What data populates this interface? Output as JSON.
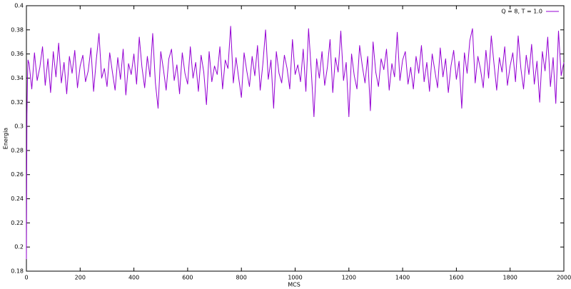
{
  "chart_data": {
    "type": "line",
    "xlabel": "MCS",
    "ylabel": "Energia",
    "x": [
      0,
      2,
      4,
      6,
      10,
      20,
      30,
      40,
      50,
      60,
      70,
      80,
      90,
      100,
      110,
      120,
      130,
      140,
      150,
      160,
      170,
      180,
      190,
      200,
      210,
      220,
      230,
      240,
      250,
      260,
      270,
      280,
      290,
      300,
      310,
      320,
      330,
      340,
      350,
      360,
      370,
      380,
      390,
      400,
      410,
      420,
      430,
      440,
      450,
      460,
      470,
      480,
      490,
      500,
      510,
      520,
      530,
      540,
      550,
      560,
      570,
      580,
      590,
      600,
      610,
      620,
      630,
      640,
      650,
      660,
      670,
      680,
      690,
      700,
      710,
      720,
      730,
      740,
      750,
      760,
      770,
      780,
      790,
      800,
      810,
      820,
      830,
      840,
      850,
      860,
      870,
      880,
      890,
      900,
      910,
      920,
      930,
      940,
      950,
      960,
      970,
      980,
      990,
      1000,
      1010,
      1020,
      1030,
      1040,
      1050,
      1060,
      1070,
      1080,
      1090,
      1100,
      1110,
      1120,
      1130,
      1140,
      1150,
      1160,
      1170,
      1180,
      1190,
      1200,
      1210,
      1220,
      1230,
      1240,
      1250,
      1260,
      1270,
      1280,
      1290,
      1300,
      1310,
      1320,
      1330,
      1340,
      1350,
      1360,
      1370,
      1380,
      1390,
      1400,
      1410,
      1420,
      1430,
      1440,
      1450,
      1460,
      1470,
      1480,
      1490,
      1500,
      1510,
      1520,
      1530,
      1540,
      1550,
      1560,
      1570,
      1580,
      1590,
      1600,
      1610,
      1620,
      1630,
      1640,
      1650,
      1660,
      1670,
      1680,
      1690,
      1700,
      1710,
      1720,
      1730,
      1740,
      1750,
      1760,
      1770,
      1780,
      1790,
      1800,
      1810,
      1820,
      1830,
      1840,
      1850,
      1860,
      1870,
      1880,
      1890,
      1900,
      1910,
      1920,
      1930,
      1940,
      1950,
      1960,
      1970,
      1980,
      1990,
      2000
    ],
    "series": [
      {
        "name": "Q = 8, T = 1.0",
        "color": "#9400d3",
        "values": [
          0.19,
          0.31,
          0.34,
          0.355,
          0.352,
          0.331,
          0.361,
          0.338,
          0.349,
          0.366,
          0.334,
          0.356,
          0.328,
          0.362,
          0.341,
          0.369,
          0.336,
          0.353,
          0.327,
          0.358,
          0.344,
          0.363,
          0.332,
          0.35,
          0.359,
          0.337,
          0.346,
          0.365,
          0.329,
          0.355,
          0.377,
          0.34,
          0.348,
          0.333,
          0.361,
          0.345,
          0.33,
          0.357,
          0.339,
          0.364,
          0.326,
          0.352,
          0.343,
          0.36,
          0.335,
          0.374,
          0.349,
          0.332,
          0.358,
          0.341,
          0.377,
          0.336,
          0.315,
          0.362,
          0.347,
          0.33,
          0.356,
          0.364,
          0.338,
          0.351,
          0.327,
          0.361,
          0.344,
          0.335,
          0.366,
          0.34,
          0.353,
          0.329,
          0.359,
          0.345,
          0.318,
          0.362,
          0.337,
          0.35,
          0.343,
          0.366,
          0.331,
          0.355,
          0.348,
          0.383,
          0.336,
          0.357,
          0.34,
          0.324,
          0.361,
          0.346,
          0.333,
          0.358,
          0.342,
          0.367,
          0.33,
          0.352,
          0.38,
          0.339,
          0.355,
          0.315,
          0.362,
          0.344,
          0.336,
          0.359,
          0.348,
          0.331,
          0.372,
          0.343,
          0.351,
          0.337,
          0.364,
          0.329,
          0.381,
          0.346,
          0.308,
          0.356,
          0.34,
          0.362,
          0.334,
          0.349,
          0.372,
          0.328,
          0.357,
          0.345,
          0.379,
          0.338,
          0.353,
          0.308,
          0.36,
          0.342,
          0.331,
          0.367,
          0.35,
          0.336,
          0.358,
          0.313,
          0.37,
          0.345,
          0.333,
          0.356,
          0.347,
          0.364,
          0.33,
          0.352,
          0.341,
          0.378,
          0.338,
          0.355,
          0.362,
          0.335,
          0.349,
          0.331,
          0.358,
          0.344,
          0.367,
          0.337,
          0.353,
          0.329,
          0.36,
          0.346,
          0.332,
          0.365,
          0.341,
          0.356,
          0.328,
          0.35,
          0.363,
          0.339,
          0.354,
          0.315,
          0.361,
          0.344,
          0.371,
          0.381,
          0.336,
          0.358,
          0.347,
          0.332,
          0.363,
          0.34,
          0.375,
          0.352,
          0.33,
          0.357,
          0.345,
          0.366,
          0.334,
          0.35,
          0.361,
          0.337,
          0.375,
          0.348,
          0.331,
          0.359,
          0.343,
          0.368,
          0.335,
          0.354,
          0.32,
          0.362,
          0.346,
          0.374,
          0.333,
          0.357,
          0.319,
          0.379,
          0.342,
          0.353
        ]
      }
    ],
    "xlim": [
      0,
      2000
    ],
    "xticks": [
      0,
      200,
      400,
      600,
      800,
      1000,
      1200,
      1400,
      1600,
      1800,
      2000
    ],
    "ylim": [
      0.18,
      0.4
    ],
    "yticks": [
      0.18,
      0.2,
      0.22,
      0.24,
      0.26,
      0.28,
      0.3,
      0.32,
      0.34,
      0.36,
      0.38,
      0.4
    ],
    "legend": "top-right"
  }
}
